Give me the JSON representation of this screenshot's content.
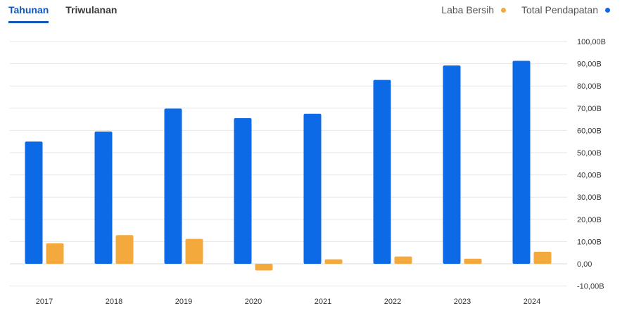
{
  "tabs": [
    {
      "label": "Tahunan",
      "active": true
    },
    {
      "label": "Triwulanan",
      "active": false
    }
  ],
  "legend": [
    {
      "label": "Laba Bersih",
      "color": "#f3a93c"
    },
    {
      "label": "Total Pendapatan",
      "color": "#0d6ae6"
    }
  ],
  "chart_data": {
    "type": "bar",
    "categories": [
      "2017",
      "2018",
      "2019",
      "2020",
      "2021",
      "2022",
      "2023",
      "2024"
    ],
    "series": [
      {
        "name": "Total Pendapatan",
        "color": "#0d6ae6",
        "values": [
          55.0,
          59.5,
          69.8,
          65.5,
          67.5,
          82.7,
          89.2,
          91.3
        ]
      },
      {
        "name": "Laba Bersih",
        "color": "#f3a93c",
        "values": [
          9.2,
          12.9,
          11.2,
          -3.0,
          2.0,
          3.3,
          2.3,
          5.4
        ]
      }
    ],
    "y_ticks": [
      {
        "value": 100,
        "label": "100,00B"
      },
      {
        "value": 90,
        "label": "90,00B"
      },
      {
        "value": 80,
        "label": "80,00B"
      },
      {
        "value": 70,
        "label": "70,00B"
      },
      {
        "value": 60,
        "label": "60,00B"
      },
      {
        "value": 50,
        "label": "50,00B"
      },
      {
        "value": 40,
        "label": "40,00B"
      },
      {
        "value": 30,
        "label": "30,00B"
      },
      {
        "value": 20,
        "label": "20,00B"
      },
      {
        "value": 10,
        "label": "10,00B"
      },
      {
        "value": 0,
        "label": "0,00"
      },
      {
        "value": -10,
        "label": "-10,00B"
      }
    ],
    "ylim": [
      -10,
      100
    ],
    "y_axis_position": "right",
    "grid": true,
    "legend_position": "top-right"
  }
}
